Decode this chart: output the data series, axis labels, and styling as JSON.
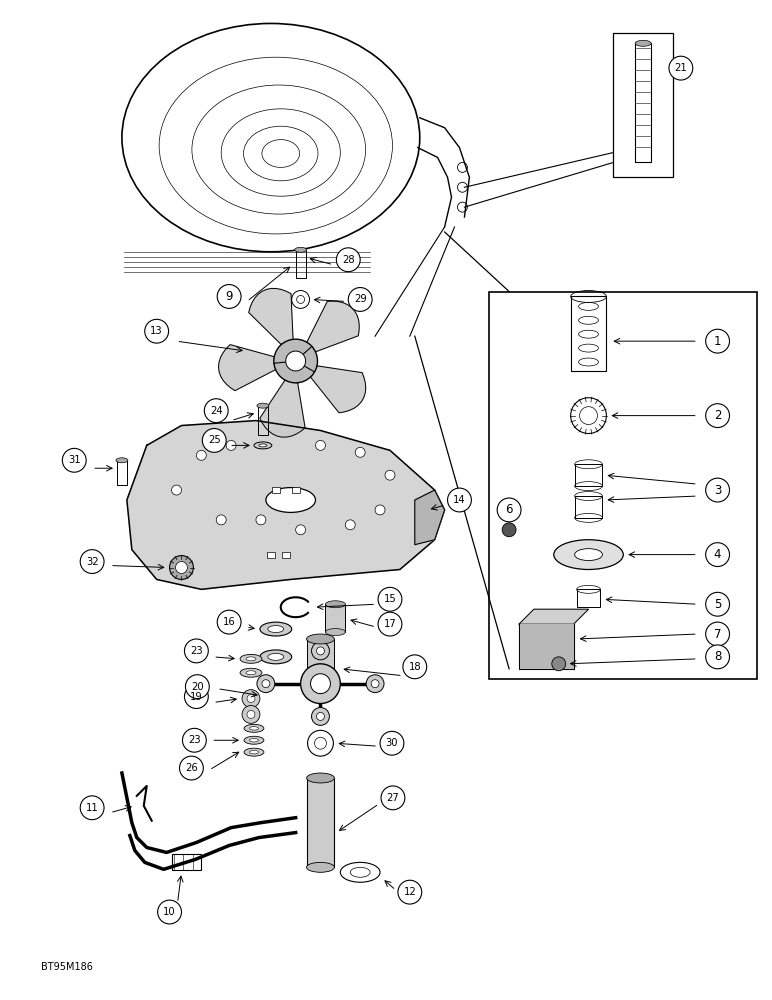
{
  "background_color": "#ffffff",
  "figure_width": 7.72,
  "figure_height": 10.0,
  "dpi": 100,
  "watermark": "BT95M186"
}
